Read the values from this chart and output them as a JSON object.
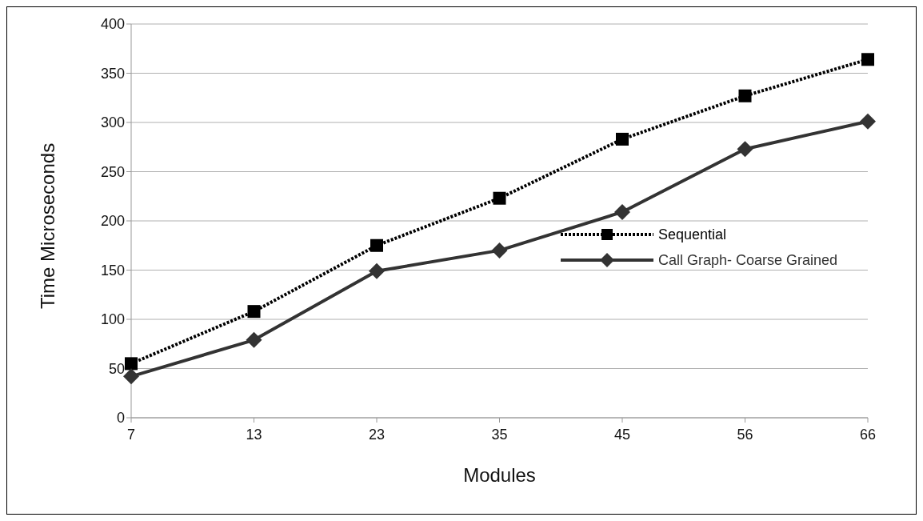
{
  "chart_data": {
    "type": "line",
    "xlabel": "Modules",
    "ylabel": "Time Microseconds",
    "categories": [
      "7",
      "13",
      "23",
      "35",
      "45",
      "56",
      "66"
    ],
    "series": [
      {
        "name": "Sequential",
        "color": "#000000",
        "marker": "square",
        "line_style": "dotted",
        "values": [
          55,
          108,
          175,
          223,
          283,
          327,
          364
        ]
      },
      {
        "name": "Call Graph- Coarse Grained",
        "color": "#333333",
        "marker": "diamond",
        "line_style": "solid",
        "values": [
          42,
          79,
          149,
          170,
          209,
          273,
          301
        ]
      }
    ],
    "ylim": [
      0,
      400
    ],
    "yticks": [
      0,
      50,
      100,
      150,
      200,
      250,
      300,
      350,
      400
    ],
    "grid": "y",
    "legend": "right"
  }
}
